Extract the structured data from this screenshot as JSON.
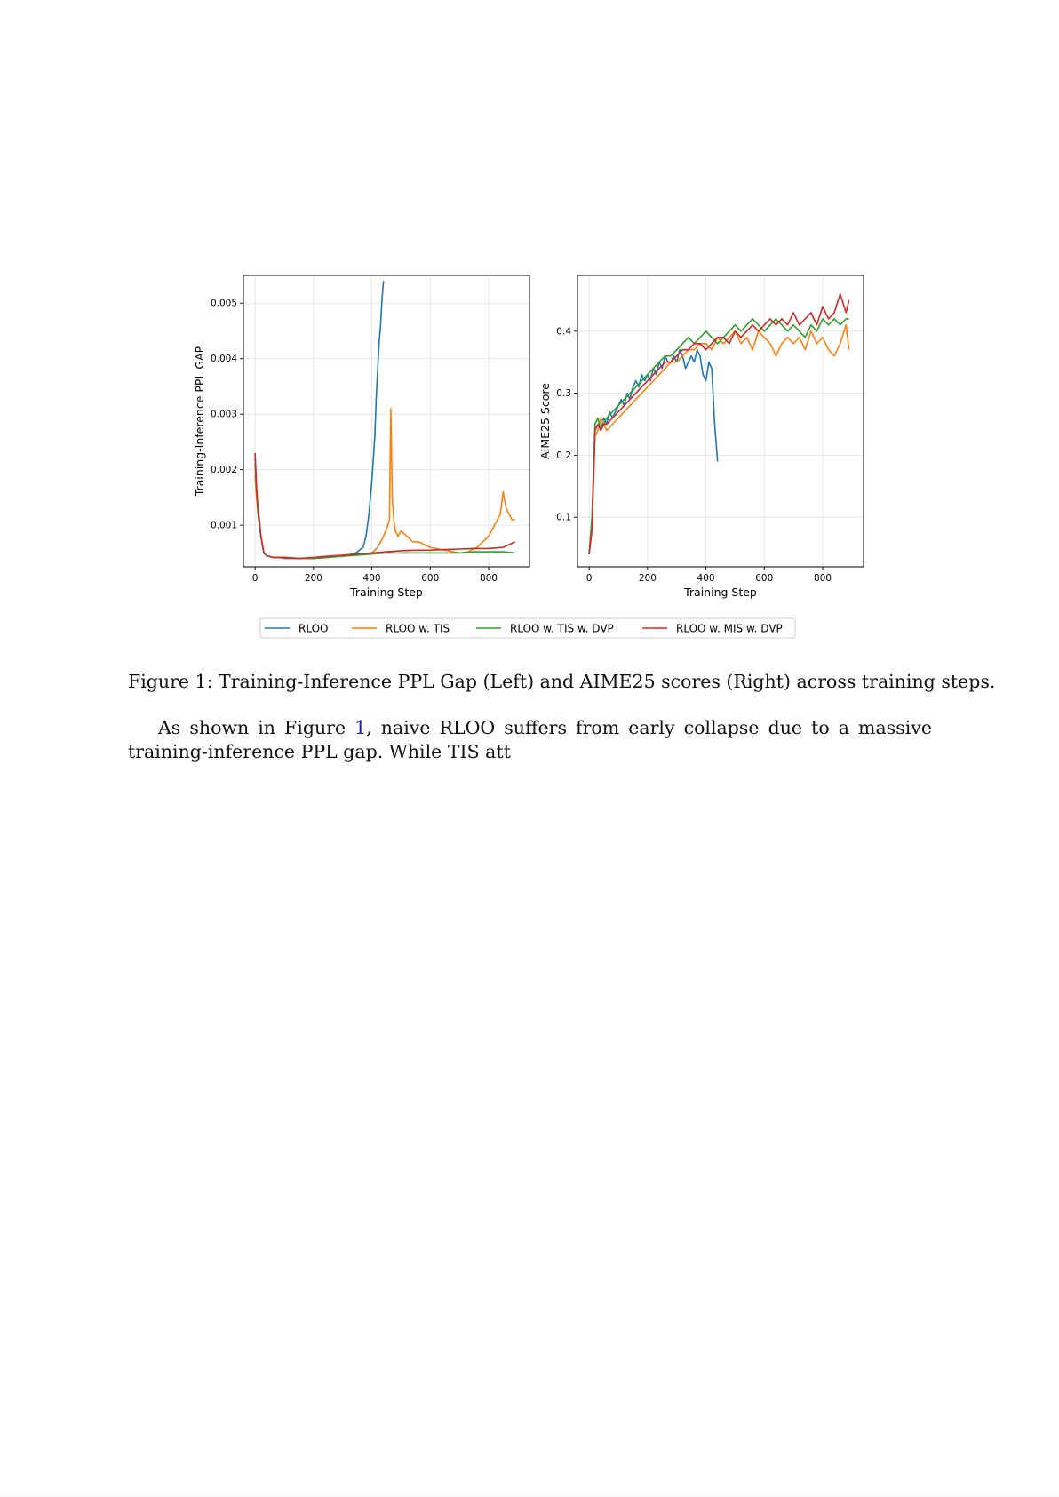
{
  "figure": {
    "legend": [
      {
        "label": "RLOO",
        "color": "#1f77b4"
      },
      {
        "label": "RLOO w. TIS",
        "color": "#ff7f0e"
      },
      {
        "label": "RLOO w. TIS w. DVP",
        "color": "#2ca02c"
      },
      {
        "label": "RLOO w. MIS w. DVP",
        "color": "#d62728"
      }
    ]
  },
  "chart_data": [
    {
      "type": "line",
      "title": "",
      "xlabel": "Training Step",
      "ylabel": "Training-Inference PPL GAP",
      "xlim": [
        -40,
        940
      ],
      "ylim": [
        0.00025,
        0.0055
      ],
      "xticks": [
        0,
        200,
        400,
        600,
        800
      ],
      "yticks": [
        0.001,
        0.002,
        0.003,
        0.004,
        0.005
      ],
      "grid": true,
      "series": [
        {
          "name": "RLOO",
          "color": "#1f77b4",
          "x": [
            0,
            5,
            10,
            15,
            20,
            30,
            40,
            60,
            80,
            100,
            150,
            200,
            250,
            300,
            340,
            370,
            380,
            390,
            400,
            410,
            415,
            420,
            425,
            430,
            435,
            440
          ],
          "y": [
            0.0022,
            0.0016,
            0.0013,
            0.0011,
            0.0008,
            0.0005,
            0.00045,
            0.00042,
            0.00042,
            0.0004,
            0.0004,
            0.0004,
            0.00043,
            0.00045,
            0.00048,
            0.0006,
            0.0008,
            0.0012,
            0.0018,
            0.0026,
            0.0033,
            0.0038,
            0.0043,
            0.0046,
            0.0051,
            0.0054
          ]
        },
        {
          "name": "RLOO w. TIS",
          "color": "#ff7f0e",
          "x": [
            0,
            5,
            10,
            15,
            20,
            30,
            40,
            60,
            100,
            150,
            200,
            250,
            300,
            350,
            400,
            420,
            440,
            455,
            460,
            465,
            470,
            475,
            480,
            490,
            500,
            520,
            540,
            560,
            580,
            600,
            650,
            700,
            720,
            740,
            760,
            780,
            800,
            820,
            840,
            850,
            860,
            870,
            880,
            890
          ],
          "y": [
            0.0019,
            0.0015,
            0.0012,
            0.001,
            0.0008,
            0.0005,
            0.00045,
            0.00042,
            0.00042,
            0.0004,
            0.0004,
            0.00042,
            0.00045,
            0.00048,
            0.0005,
            0.0006,
            0.0008,
            0.001,
            0.0011,
            0.0031,
            0.0015,
            0.0011,
            0.0009,
            0.0008,
            0.0009,
            0.0008,
            0.0007,
            0.0007,
            0.00065,
            0.0006,
            0.00055,
            0.0005,
            0.0005,
            0.00055,
            0.0006,
            0.0007,
            0.0008,
            0.001,
            0.0012,
            0.0016,
            0.0013,
            0.0012,
            0.0011,
            0.0011
          ]
        },
        {
          "name": "RLOO w. TIS w. DVP",
          "color": "#2ca02c",
          "x": [
            0,
            5,
            10,
            15,
            20,
            30,
            40,
            60,
            100,
            150,
            200,
            250,
            300,
            350,
            400,
            450,
            500,
            550,
            600,
            650,
            700,
            750,
            800,
            850,
            890
          ],
          "y": [
            0.0021,
            0.0016,
            0.0012,
            0.001,
            0.0008,
            0.0005,
            0.00045,
            0.00042,
            0.00042,
            0.0004,
            0.0004,
            0.00042,
            0.00044,
            0.00046,
            0.00048,
            0.0005,
            0.0005,
            0.0005,
            0.0005,
            0.0005,
            0.0005,
            0.00052,
            0.00052,
            0.00052,
            0.0005
          ]
        },
        {
          "name": "RLOO w. MIS w. DVP",
          "color": "#d62728",
          "x": [
            0,
            5,
            10,
            15,
            20,
            30,
            40,
            60,
            100,
            150,
            200,
            250,
            300,
            350,
            400,
            450,
            500,
            550,
            600,
            650,
            700,
            750,
            800,
            850,
            890
          ],
          "y": [
            0.0023,
            0.0017,
            0.0013,
            0.001,
            0.0008,
            0.0005,
            0.00045,
            0.00042,
            0.00042,
            0.0004,
            0.00042,
            0.00044,
            0.00046,
            0.00048,
            0.0005,
            0.00052,
            0.00054,
            0.00055,
            0.00055,
            0.00056,
            0.00057,
            0.00058,
            0.00058,
            0.0006,
            0.0007
          ]
        }
      ]
    },
    {
      "type": "line",
      "title": "",
      "xlabel": "Training Step",
      "ylabel": "AIME25 Score",
      "xlim": [
        -40,
        940
      ],
      "ylim": [
        0.02,
        0.49
      ],
      "xticks": [
        0,
        200,
        400,
        600,
        800
      ],
      "yticks": [
        0.1,
        0.2,
        0.3,
        0.4
      ],
      "grid": true,
      "series": [
        {
          "name": "RLOO",
          "color": "#1f77b4",
          "x": [
            0,
            10,
            20,
            30,
            40,
            50,
            60,
            70,
            80,
            90,
            100,
            110,
            120,
            130,
            140,
            150,
            160,
            170,
            180,
            190,
            200,
            210,
            220,
            230,
            240,
            250,
            260,
            270,
            280,
            290,
            300,
            310,
            320,
            330,
            340,
            350,
            360,
            370,
            380,
            390,
            400,
            410,
            420,
            430,
            440
          ],
          "y": [
            0.04,
            0.1,
            0.24,
            0.25,
            0.24,
            0.26,
            0.25,
            0.27,
            0.26,
            0.27,
            0.28,
            0.29,
            0.28,
            0.3,
            0.29,
            0.31,
            0.32,
            0.31,
            0.33,
            0.32,
            0.33,
            0.32,
            0.34,
            0.33,
            0.35,
            0.34,
            0.36,
            0.35,
            0.35,
            0.36,
            0.35,
            0.37,
            0.36,
            0.34,
            0.35,
            0.36,
            0.35,
            0.37,
            0.36,
            0.33,
            0.32,
            0.35,
            0.34,
            0.25,
            0.19
          ]
        },
        {
          "name": "RLOO w. TIS",
          "color": "#ff7f0e",
          "x": [
            0,
            10,
            20,
            30,
            40,
            50,
            60,
            80,
            100,
            120,
            140,
            160,
            180,
            200,
            220,
            240,
            260,
            280,
            300,
            320,
            340,
            360,
            380,
            400,
            420,
            440,
            460,
            480,
            500,
            520,
            540,
            560,
            580,
            600,
            620,
            640,
            660,
            680,
            700,
            720,
            740,
            760,
            780,
            800,
            820,
            840,
            860,
            880,
            890
          ],
          "y": [
            0.04,
            0.09,
            0.23,
            0.24,
            0.26,
            0.25,
            0.24,
            0.25,
            0.26,
            0.27,
            0.28,
            0.29,
            0.3,
            0.31,
            0.32,
            0.33,
            0.34,
            0.35,
            0.35,
            0.36,
            0.37,
            0.37,
            0.38,
            0.38,
            0.37,
            0.39,
            0.38,
            0.39,
            0.4,
            0.38,
            0.39,
            0.37,
            0.4,
            0.39,
            0.38,
            0.36,
            0.38,
            0.39,
            0.38,
            0.39,
            0.37,
            0.4,
            0.38,
            0.39,
            0.37,
            0.36,
            0.38,
            0.41,
            0.37
          ]
        },
        {
          "name": "RLOO w. TIS w. DVP",
          "color": "#2ca02c",
          "x": [
            0,
            10,
            20,
            30,
            40,
            50,
            60,
            80,
            100,
            120,
            140,
            160,
            180,
            200,
            220,
            240,
            260,
            280,
            300,
            320,
            340,
            360,
            380,
            400,
            420,
            440,
            460,
            480,
            500,
            520,
            540,
            560,
            580,
            600,
            620,
            640,
            660,
            680,
            700,
            720,
            740,
            760,
            780,
            800,
            820,
            840,
            860,
            880,
            890
          ],
          "y": [
            0.04,
            0.1,
            0.25,
            0.26,
            0.24,
            0.25,
            0.26,
            0.27,
            0.28,
            0.29,
            0.3,
            0.31,
            0.32,
            0.33,
            0.34,
            0.35,
            0.36,
            0.36,
            0.37,
            0.38,
            0.39,
            0.38,
            0.39,
            0.4,
            0.39,
            0.38,
            0.39,
            0.4,
            0.41,
            0.4,
            0.41,
            0.42,
            0.41,
            0.4,
            0.41,
            0.42,
            0.41,
            0.4,
            0.41,
            0.4,
            0.39,
            0.41,
            0.4,
            0.42,
            0.41,
            0.42,
            0.41,
            0.42,
            0.42
          ]
        },
        {
          "name": "RLOO w. MIS w. DVP",
          "color": "#d62728",
          "x": [
            0,
            10,
            20,
            30,
            40,
            50,
            60,
            80,
            100,
            120,
            140,
            160,
            180,
            200,
            220,
            240,
            260,
            280,
            300,
            320,
            340,
            360,
            380,
            400,
            420,
            440,
            460,
            480,
            500,
            520,
            540,
            560,
            580,
            600,
            620,
            640,
            660,
            680,
            700,
            720,
            740,
            760,
            780,
            800,
            820,
            840,
            860,
            880,
            890
          ],
          "y": [
            0.04,
            0.08,
            0.24,
            0.25,
            0.24,
            0.25,
            0.25,
            0.26,
            0.27,
            0.28,
            0.29,
            0.3,
            0.31,
            0.32,
            0.33,
            0.34,
            0.35,
            0.35,
            0.36,
            0.37,
            0.37,
            0.38,
            0.38,
            0.37,
            0.38,
            0.39,
            0.39,
            0.38,
            0.4,
            0.39,
            0.4,
            0.41,
            0.4,
            0.41,
            0.42,
            0.41,
            0.42,
            0.41,
            0.43,
            0.41,
            0.42,
            0.43,
            0.41,
            0.44,
            0.42,
            0.43,
            0.46,
            0.43,
            0.45
          ]
        }
      ]
    }
  ],
  "caption": "Figure 1: Training-Inference PPL Gap (Left) and AIME25 scores (Right) across training steps.",
  "paragraph": {
    "before_ref": "As shown in Figure ",
    "ref": "1",
    "after_ref": ", naive RLOO suffers from early collapse due to a massive training-inference PPL gap. While TIS att"
  }
}
